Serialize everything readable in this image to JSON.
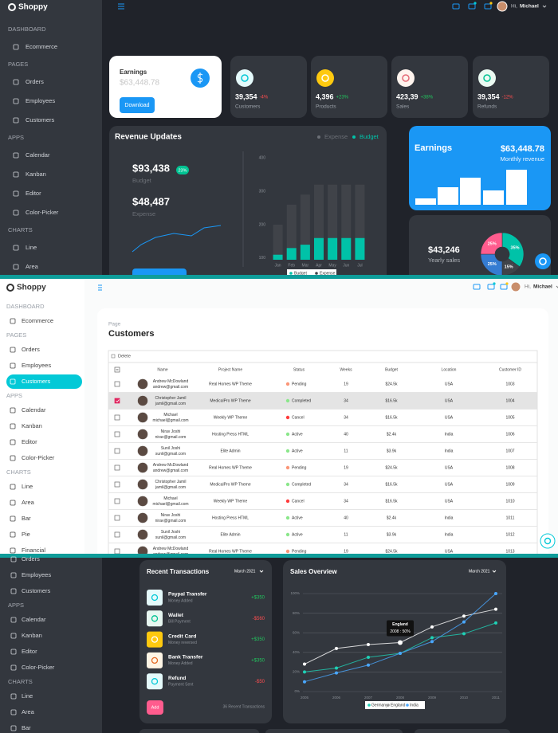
{
  "brand": "Shoppy",
  "user": {
    "greeting": "Hi,",
    "name": "Michael"
  },
  "dashboard": {
    "sidebar": [
      {
        "heading": "DASHBOARD",
        "items": [
          "Ecommerce"
        ]
      },
      {
        "heading": "PAGES",
        "items": [
          "Orders",
          "Employees",
          "Customers"
        ]
      },
      {
        "heading": "APPS",
        "items": [
          "Calendar",
          "Kanban",
          "Editor",
          "Color-Picker"
        ]
      },
      {
        "heading": "CHARTS",
        "items": [
          "Line",
          "Area"
        ]
      }
    ],
    "earnings": {
      "title": "Earnings",
      "value": "$63,448.78",
      "button": "Download"
    },
    "stats": [
      {
        "value": "39,354",
        "change": "-4%",
        "change_color": "#ff4d4f",
        "label": "Customers",
        "icon_bg": "#e5fafb",
        "icon_color": "#03c9d7"
      },
      {
        "value": "4,396",
        "change": "+23%",
        "change_color": "#22c55e",
        "label": "Products",
        "icon_bg": "#fec90f",
        "icon_color": "#ffffff"
      },
      {
        "value": "423,39",
        "change": "+38%",
        "change_color": "#22c55e",
        "label": "Sales",
        "icon_bg": "#fff4ee",
        "icon_color": "#e46a76"
      },
      {
        "value": "39,354",
        "change": "-12%",
        "change_color": "#ff4d4f",
        "label": "Refunds",
        "icon_bg": "#ebfaf2",
        "icon_color": "#00c292"
      }
    ],
    "revenue": {
      "title": "Revenue Updates",
      "budget": {
        "value": "$93,438",
        "badge": "23%",
        "label": "Budget"
      },
      "expense": {
        "value": "$48,487",
        "label": "Expense"
      },
      "chart": {
        "type": "bar",
        "categories": [
          "Jan",
          "Feb",
          "Mar",
          "Apr",
          "May",
          "Jun",
          "Jul"
        ],
        "series": [
          {
            "name": "Expense",
            "color": "#404349",
            "values": [
              200,
              260,
              290,
              320,
              320,
              320,
              320
            ]
          },
          {
            "name": "Budget",
            "color": "#00c2a8",
            "values": [
              110,
              130,
              140,
              160,
              160,
              160,
              160
            ]
          }
        ],
        "ylim": [
          95,
          410
        ],
        "yticks": [
          100,
          200,
          300,
          400
        ],
        "grid": false
      }
    },
    "monthly": {
      "title": "Earnings",
      "value": "$63,448.78",
      "label": "Monthly revenue"
    },
    "yearly": {
      "value": "$43,246",
      "label": "Yearly sales",
      "chart": {
        "type": "pie",
        "values": [
          35,
          15,
          25,
          25
        ],
        "value_labels": [
          "35%",
          "15%",
          "25%",
          "25%"
        ],
        "colors": [
          "#00c2a8",
          "#404349",
          "#357cd2",
          "#ff5c8e"
        ]
      }
    }
  },
  "customers": {
    "sidebar": [
      {
        "heading": "DASHBOARD",
        "items": [
          "Ecommerce"
        ]
      },
      {
        "heading": "PAGES",
        "items": [
          "Orders",
          "Employees",
          "Customers"
        ]
      },
      {
        "heading": "APPS",
        "items": [
          "Calendar",
          "Kanban",
          "Editor",
          "Color-Picker"
        ]
      },
      {
        "heading": "CHARTS",
        "items": [
          "Line",
          "Area",
          "Bar",
          "Pie",
          "Financial"
        ]
      }
    ],
    "active": {
      "group": 1,
      "item": 2
    },
    "page_label": "Page",
    "title": "Customers",
    "toolbar": "Delete",
    "columns": [
      "Name",
      "Project Name",
      "Status",
      "Weeks",
      "Budget",
      "Location",
      "Customer ID"
    ],
    "rows": [
      {
        "name": "Andrew McDowland",
        "email": "andrew@gmail.com",
        "project": "Real Homes WP Theme",
        "status": "Pending",
        "status_color": "#fb9678",
        "weeks": "19",
        "budget": "$24.5k",
        "location": "USA",
        "id": "1003",
        "selected": false
      },
      {
        "name": "Christopher Jamil",
        "email": "jamil@gmail.com",
        "project": "MedicalPro WP Theme",
        "status": "Completed",
        "status_color": "#8be78b",
        "weeks": "34",
        "budget": "$16.5k",
        "location": "USA",
        "id": "1004",
        "selected": true
      },
      {
        "name": "Michael",
        "email": "michael@gmail.com",
        "project": "Weekly WP Theme",
        "status": "Cancel",
        "status_color": "#ff3c3c",
        "weeks": "34",
        "budget": "$16.5k",
        "location": "USA",
        "id": "1005",
        "selected": false
      },
      {
        "name": "Nirav Joshi",
        "email": "nirav@gmail.com",
        "project": "Hosting Press HTML",
        "status": "Active",
        "status_color": "#8be78b",
        "weeks": "40",
        "budget": "$2.4k",
        "location": "India",
        "id": "1006",
        "selected": false
      },
      {
        "name": "Sunil Joshi",
        "email": "sunil@gmail.com",
        "project": "Elite Admin",
        "status": "Active",
        "status_color": "#8be78b",
        "weeks": "11",
        "budget": "$3.9k",
        "location": "India",
        "id": "1007",
        "selected": false
      },
      {
        "name": "Andrew McDowland",
        "email": "andrew@gmail.com",
        "project": "Real Homes WP Theme",
        "status": "Pending",
        "status_color": "#fb9678",
        "weeks": "19",
        "budget": "$24.5k",
        "location": "USA",
        "id": "1008",
        "selected": false
      },
      {
        "name": "Christopher Jamil",
        "email": "jamil@gmail.com",
        "project": "MedicalPro WP Theme",
        "status": "Completed",
        "status_color": "#8be78b",
        "weeks": "34",
        "budget": "$16.5k",
        "location": "USA",
        "id": "1009",
        "selected": false
      },
      {
        "name": "Michael",
        "email": "michael@gmail.com",
        "project": "Weekly WP Theme",
        "status": "Cancel",
        "status_color": "#ff3c3c",
        "weeks": "34",
        "budget": "$16.5k",
        "location": "USA",
        "id": "1010",
        "selected": false
      },
      {
        "name": "Nirav Joshi",
        "email": "nirav@gmail.com",
        "project": "Hosting Press HTML",
        "status": "Active",
        "status_color": "#8be78b",
        "weeks": "40",
        "budget": "$2.4k",
        "location": "India",
        "id": "1011",
        "selected": false
      },
      {
        "name": "Sunil Joshi",
        "email": "sunil@gmail.com",
        "project": "Elite Admin",
        "status": "Active",
        "status_color": "#8be78b",
        "weeks": "11",
        "budget": "$3.9k",
        "location": "India",
        "id": "1012",
        "selected": false
      },
      {
        "name": "Andrew McDowland",
        "email": "andrew@gmail.com",
        "project": "Real Homes WP Theme",
        "status": "Pending",
        "status_color": "#fb9678",
        "weeks": "19",
        "budget": "$24.5k",
        "location": "USA",
        "id": "1013",
        "selected": false
      }
    ]
  },
  "overview": {
    "sidebar": [
      {
        "items": [
          "Orders",
          "Employees",
          "Customers"
        ]
      },
      {
        "heading": "APPS",
        "items": [
          "Calendar",
          "Kanban",
          "Editor",
          "Color-Picker"
        ]
      },
      {
        "heading": "CHARTS",
        "items": [
          "Line",
          "Area",
          "Bar"
        ]
      }
    ],
    "transactions": {
      "title": "Recent Transactions",
      "period": "March 2021",
      "items": [
        {
          "title": "Paypal Transfer",
          "subtitle": "Money Added",
          "amount": "+$350",
          "amount_color": "#22c55e",
          "icon_bg": "#e5fafb",
          "icon_color": "#03c9d7"
        },
        {
          "title": "Wallet",
          "subtitle": "Bill Payment",
          "amount": "-$560",
          "amount_color": "#ff4d4f",
          "icon_bg": "#e7f7f1",
          "icon_color": "#00c292"
        },
        {
          "title": "Credit Card",
          "subtitle": "Money reversed",
          "amount": "+$350",
          "amount_color": "#22c55e",
          "icon_bg": "#fec90f",
          "icon_color": "#ffffff"
        },
        {
          "title": "Bank Transfer",
          "subtitle": "Money Added",
          "amount": "+$350",
          "amount_color": "#22c55e",
          "icon_bg": "#fef5e5",
          "icon_color": "#e46a26"
        },
        {
          "title": "Refund",
          "subtitle": "Payment Sent",
          "amount": "-$50",
          "amount_color": "#ff4d4f",
          "icon_bg": "#e5fafb",
          "icon_color": "#03c9d7"
        }
      ],
      "button": "Add",
      "footer": "36 Recent Transactions"
    },
    "sales": {
      "title": "Sales Overview",
      "period": "March 2021",
      "chart": {
        "type": "line",
        "x": [
          2005,
          2006,
          2007,
          2008,
          2009,
          2010,
          2011
        ],
        "xlim": [
          2005,
          2011
        ],
        "xticks": [
          2005,
          2006,
          2007,
          2008,
          2009,
          2010,
          2011
        ],
        "ylim": [
          0,
          100
        ],
        "yticks": [
          {
            "value": 0,
            "label": "0%"
          },
          {
            "value": 20,
            "label": "20%"
          },
          {
            "value": 40,
            "label": "40%"
          },
          {
            "value": 60,
            "label": "60%"
          },
          {
            "value": 80,
            "label": "80%"
          },
          {
            "value": 100,
            "label": "100%"
          }
        ],
        "grid": true,
        "series": [
          {
            "name": "Germany",
            "color": "#1fd1b6",
            "values": [
              20,
              24,
              35,
              39,
              55,
              59,
              70
            ]
          },
          {
            "name": "England",
            "color": "#ffffff",
            "values": [
              28,
              44,
              48,
              50,
              66,
              77,
              84
            ]
          },
          {
            "name": "India",
            "color": "#4aa8ff",
            "values": [
              10,
              19,
              27,
              39,
              51,
              71,
              100
            ]
          }
        ],
        "tooltip": {
          "series": 1,
          "index": 3,
          "title": "England",
          "text": "2008 : 50%"
        }
      }
    }
  }
}
